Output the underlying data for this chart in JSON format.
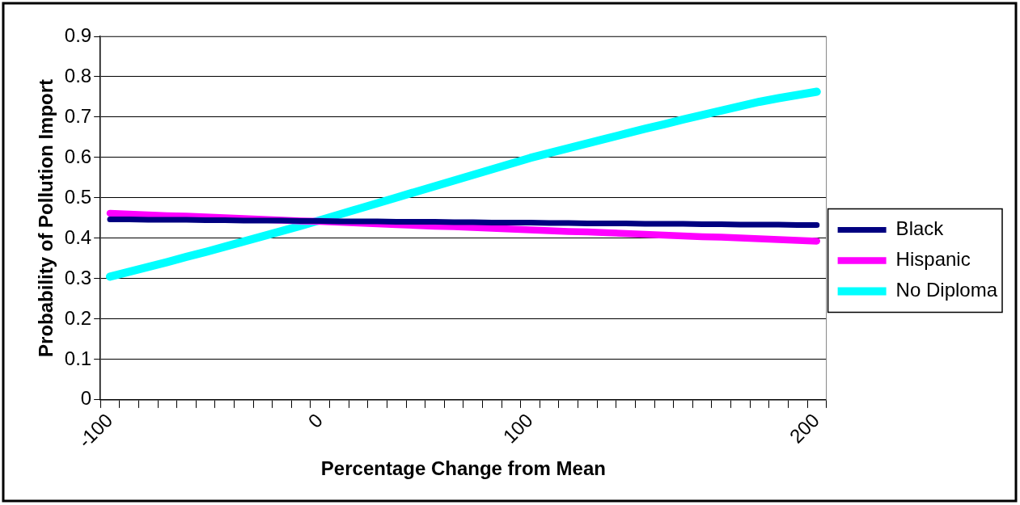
{
  "chart_data": {
    "type": "line",
    "xlabel": "Percentage Change from Mean",
    "ylabel": "Probability of Pollution Import",
    "categories": [
      "-100",
      null,
      null,
      null,
      null,
      null,
      null,
      null,
      null,
      null,
      null,
      "0",
      null,
      null,
      null,
      null,
      null,
      null,
      null,
      null,
      null,
      null,
      "100",
      null,
      null,
      null,
      null,
      null,
      null,
      null,
      null,
      null,
      null,
      null,
      null,
      null,
      null,
      "200"
    ],
    "series": [
      {
        "name": "Black",
        "color": "#000080",
        "values": [
          0.447,
          0.447,
          0.446,
          0.446,
          0.446,
          0.445,
          0.445,
          0.444,
          0.444,
          0.444,
          0.443,
          0.443,
          0.442,
          0.442,
          0.442,
          0.441,
          0.441,
          0.441,
          0.44,
          0.44,
          0.439,
          0.439,
          0.439,
          0.438,
          0.438,
          0.437,
          0.437,
          0.437,
          0.436,
          0.436,
          0.436,
          0.435,
          0.435,
          0.434,
          0.434,
          0.434,
          0.433,
          0.433
        ]
      },
      {
        "name": "Hispanic",
        "color": "#ff00ff",
        "values": [
          0.462,
          0.46,
          0.458,
          0.456,
          0.455,
          0.453,
          0.451,
          0.449,
          0.447,
          0.445,
          0.443,
          0.442,
          0.44,
          0.438,
          0.436,
          0.434,
          0.432,
          0.43,
          0.429,
          0.427,
          0.425,
          0.423,
          0.421,
          0.419,
          0.417,
          0.416,
          0.414,
          0.412,
          0.41,
          0.408,
          0.406,
          0.404,
          0.403,
          0.401,
          0.399,
          0.397,
          0.395,
          0.393
        ]
      },
      {
        "name": "No Diploma",
        "color": "#00ffff",
        "values": [
          0.305,
          0.317,
          0.329,
          0.341,
          0.354,
          0.366,
          0.379,
          0.392,
          0.405,
          0.418,
          0.431,
          0.445,
          0.459,
          0.473,
          0.487,
          0.501,
          0.515,
          0.529,
          0.543,
          0.557,
          0.571,
          0.585,
          0.599,
          0.611,
          0.623,
          0.635,
          0.647,
          0.659,
          0.671,
          0.682,
          0.694,
          0.705,
          0.716,
          0.727,
          0.738,
          0.747,
          0.755,
          0.763
        ]
      }
    ],
    "ylim": [
      0,
      0.9
    ],
    "yticks": [
      0,
      0.1,
      0.2,
      0.3,
      0.4,
      0.5,
      0.6,
      0.7,
      0.8,
      0.9
    ],
    "grid": "y",
    "legend": "right",
    "marker": "none",
    "line_style": "solid"
  }
}
